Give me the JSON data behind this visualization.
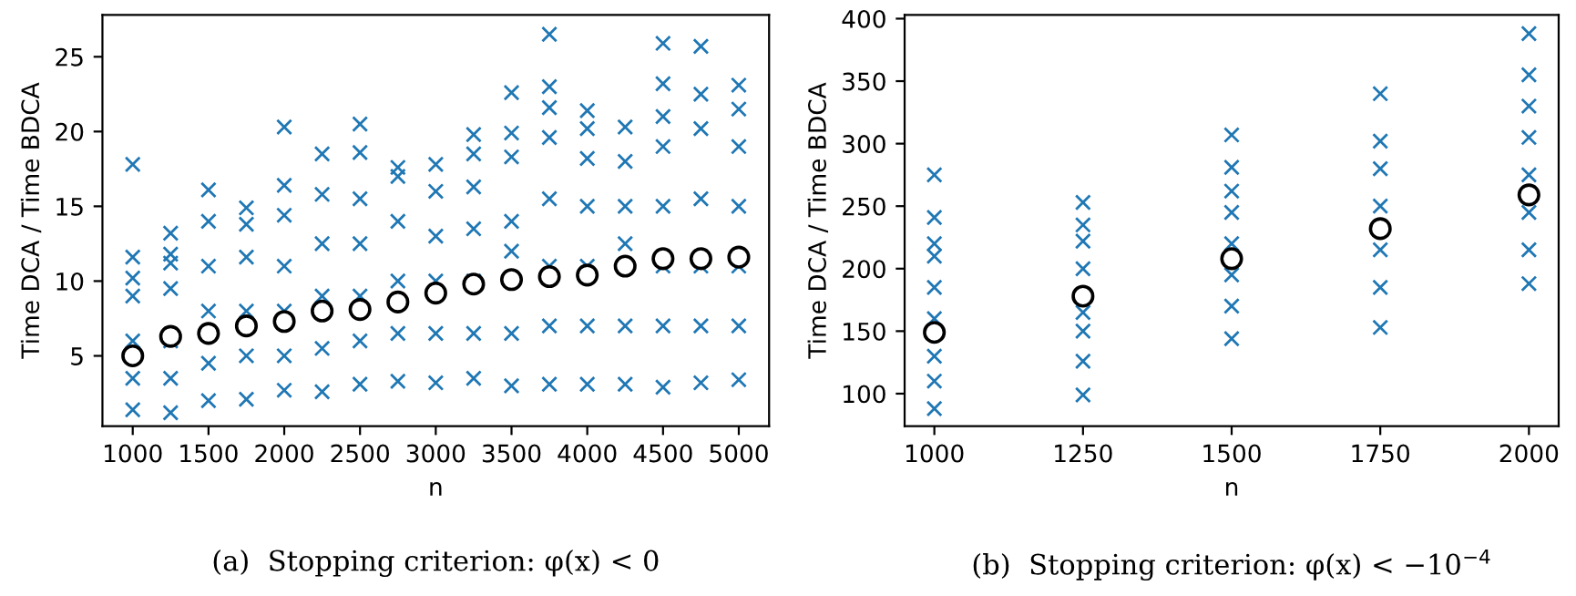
{
  "chart_data": [
    {
      "type": "scatter",
      "xlabel": "n",
      "ylabel": "Time DCA / Time BDCA",
      "annotations": [
        "(a)  Stopping criterion: φ(x) < 0"
      ],
      "xlim": [
        800,
        5200
      ],
      "ylim": [
        0.3,
        27.8
      ],
      "xticks": [
        1000,
        1500,
        2000,
        2500,
        3000,
        3500,
        4000,
        4500,
        5000
      ],
      "yticks": [
        5,
        10,
        15,
        20,
        25
      ],
      "grid": false,
      "legend": false,
      "series": [
        {
          "marker": "cross",
          "color": "#1f77b4",
          "x": [
            1000,
            1000,
            1000,
            1000,
            1000,
            1000,
            1000,
            1250,
            1250,
            1250,
            1250,
            1250,
            1250,
            1250,
            1500,
            1500,
            1500,
            1500,
            1500,
            1500,
            1750,
            1750,
            1750,
            1750,
            1750,
            1750,
            2000,
            2000,
            2000,
            2000,
            2000,
            2000,
            2000,
            2250,
            2250,
            2250,
            2250,
            2250,
            2250,
            2500,
            2500,
            2500,
            2500,
            2500,
            2500,
            2500,
            2750,
            2750,
            2750,
            2750,
            2750,
            2750,
            3000,
            3000,
            3000,
            3000,
            3000,
            3000,
            3250,
            3250,
            3250,
            3250,
            3250,
            3250,
            3250,
            3500,
            3500,
            3500,
            3500,
            3500,
            3500,
            3500,
            3750,
            3750,
            3750,
            3750,
            3750,
            3750,
            3750,
            3750,
            4000,
            4000,
            4000,
            4000,
            4000,
            4000,
            4000,
            4250,
            4250,
            4250,
            4250,
            4250,
            4250,
            4500,
            4500,
            4500,
            4500,
            4500,
            4500,
            4500,
            4500,
            4750,
            4750,
            4750,
            4750,
            4750,
            4750,
            4750,
            5000,
            5000,
            5000,
            5000,
            5000,
            5000,
            5000
          ],
          "values": [
            1.4,
            3.5,
            6,
            9,
            10.2,
            11.6,
            17.8,
            1.2,
            3.5,
            6,
            9.5,
            11.2,
            11.8,
            13.2,
            2,
            4.5,
            8,
            11,
            14,
            16.1,
            2.1,
            5,
            8,
            11.6,
            13.8,
            14.9,
            2.7,
            5,
            8,
            11,
            14.4,
            16.4,
            20.3,
            2.6,
            5.5,
            9,
            12.5,
            15.8,
            18.5,
            3.1,
            6,
            9,
            12.5,
            15.5,
            18.6,
            20.5,
            3.3,
            6.5,
            10,
            14,
            17,
            17.6,
            3.2,
            6.5,
            10,
            13,
            16,
            17.8,
            3.5,
            6.5,
            10,
            13.5,
            16.3,
            18.5,
            19.8,
            3,
            6.5,
            12,
            14,
            18.3,
            19.9,
            22.6,
            3.1,
            7,
            11,
            15.5,
            19.6,
            21.6,
            23,
            26.5,
            3.1,
            7,
            11,
            15,
            18.2,
            20.2,
            21.4,
            3.1,
            7,
            12.5,
            15,
            18,
            20.3,
            2.9,
            7,
            11,
            15,
            19,
            21,
            23.2,
            25.9,
            3.2,
            7,
            11,
            15.5,
            20.2,
            22.5,
            25.7,
            3.4,
            7,
            11,
            15,
            19,
            21.5,
            23.1
          ]
        },
        {
          "marker": "circle",
          "color": "#ffffff",
          "x": [
            1000,
            1250,
            1500,
            1750,
            2000,
            2250,
            2500,
            2750,
            3000,
            3250,
            3500,
            3750,
            4000,
            4250,
            4500,
            4750,
            5000
          ],
          "values": [
            5.0,
            6.3,
            6.5,
            7.0,
            7.3,
            8.0,
            8.1,
            8.6,
            9.2,
            9.8,
            10.1,
            10.3,
            10.4,
            11.0,
            11.5,
            11.5,
            11.6
          ]
        }
      ]
    },
    {
      "type": "scatter",
      "xlabel": "n",
      "ylabel": "Time DCA / Time BDCA",
      "annotations": [
        "(b)  Stopping criterion: φ(x) < −10$^{−4}$"
      ],
      "xlim": [
        950,
        2050
      ],
      "ylim": [
        74,
        403
      ],
      "xticks": [
        1000,
        1250,
        1500,
        1750,
        2000
      ],
      "yticks": [
        100,
        150,
        200,
        250,
        300,
        350,
        400
      ],
      "grid": false,
      "legend": false,
      "series": [
        {
          "marker": "cross",
          "color": "#1f77b4",
          "x": [
            1000,
            1000,
            1000,
            1000,
            1000,
            1000,
            1000,
            1000,
            1000,
            1250,
            1250,
            1250,
            1250,
            1250,
            1250,
            1250,
            1250,
            1500,
            1500,
            1500,
            1500,
            1500,
            1500,
            1500,
            1500,
            1750,
            1750,
            1750,
            1750,
            1750,
            1750,
            1750,
            2000,
            2000,
            2000,
            2000,
            2000,
            2000,
            2000,
            2000
          ],
          "values": [
            88,
            110,
            130,
            160,
            185,
            210,
            220,
            241,
            275,
            99,
            126,
            150,
            165,
            200,
            222,
            235,
            253,
            144,
            170,
            195,
            220,
            245,
            262,
            281,
            307,
            153,
            185,
            215,
            250,
            280,
            302,
            340,
            188,
            215,
            245,
            275,
            305,
            330,
            355,
            388
          ]
        },
        {
          "marker": "circle",
          "color": "#ffffff",
          "x": [
            1000,
            1250,
            1500,
            1750,
            2000
          ],
          "values": [
            149,
            178,
            208,
            232,
            259
          ]
        }
      ]
    }
  ]
}
